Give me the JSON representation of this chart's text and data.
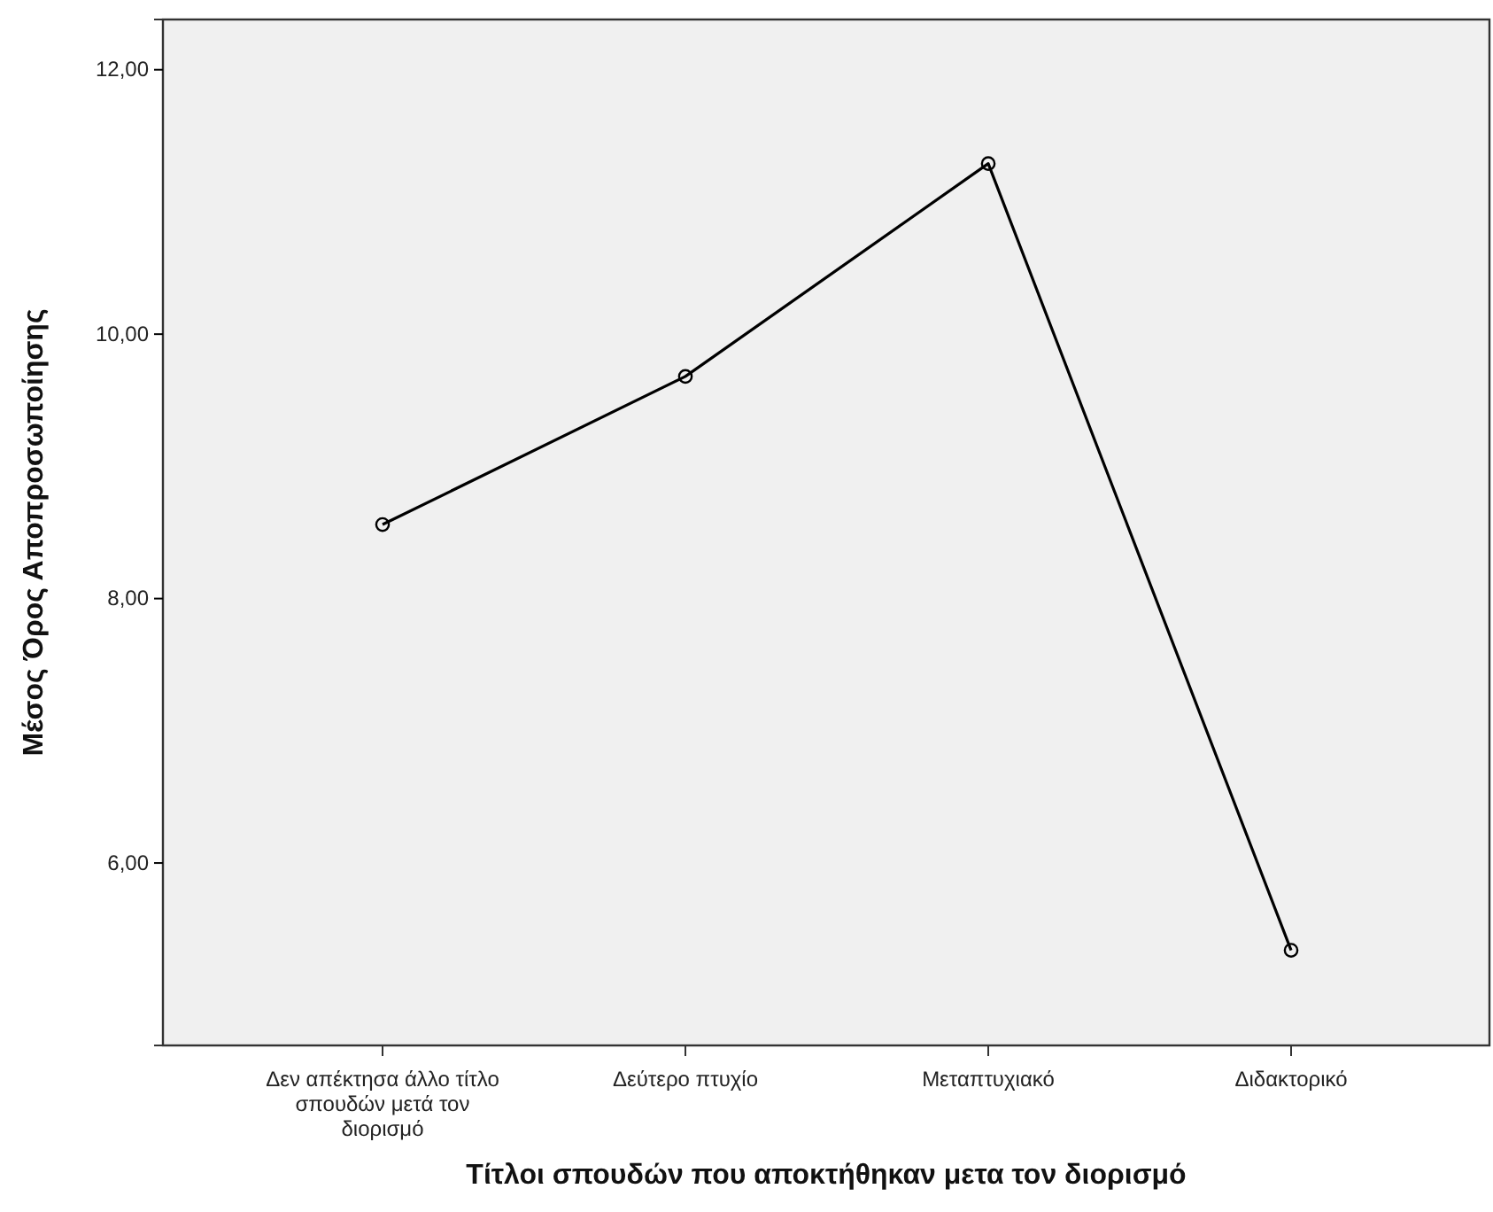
{
  "chart_data": {
    "type": "line",
    "xlabel": "Τίτλοι σπουδών που αποκτήθηκαν μετα τον διορισμό",
    "ylabel": "Μέσος Όρος Αποπροσωποίησης",
    "categories": [
      "Δεν απέκτησα άλλο τίτλο σπουδών μετά τον διορισμό",
      "Δεύτερο πτυχίο",
      "Μεταπτυχιακό",
      "Διδακτορικό"
    ],
    "series": [
      {
        "color": "#000000",
        "values": [
          8.56,
          9.68,
          11.29,
          5.34
        ]
      }
    ],
    "ylim": [
      4.62,
      12.38
    ],
    "yticks": [
      {
        "value": 6,
        "label": "6,00"
      },
      {
        "value": 8,
        "label": "8,00"
      },
      {
        "value": 10,
        "label": "10,00"
      },
      {
        "value": 12,
        "label": "12,00"
      }
    ],
    "marker": "circle",
    "line_style": "solid",
    "grid": false
  }
}
